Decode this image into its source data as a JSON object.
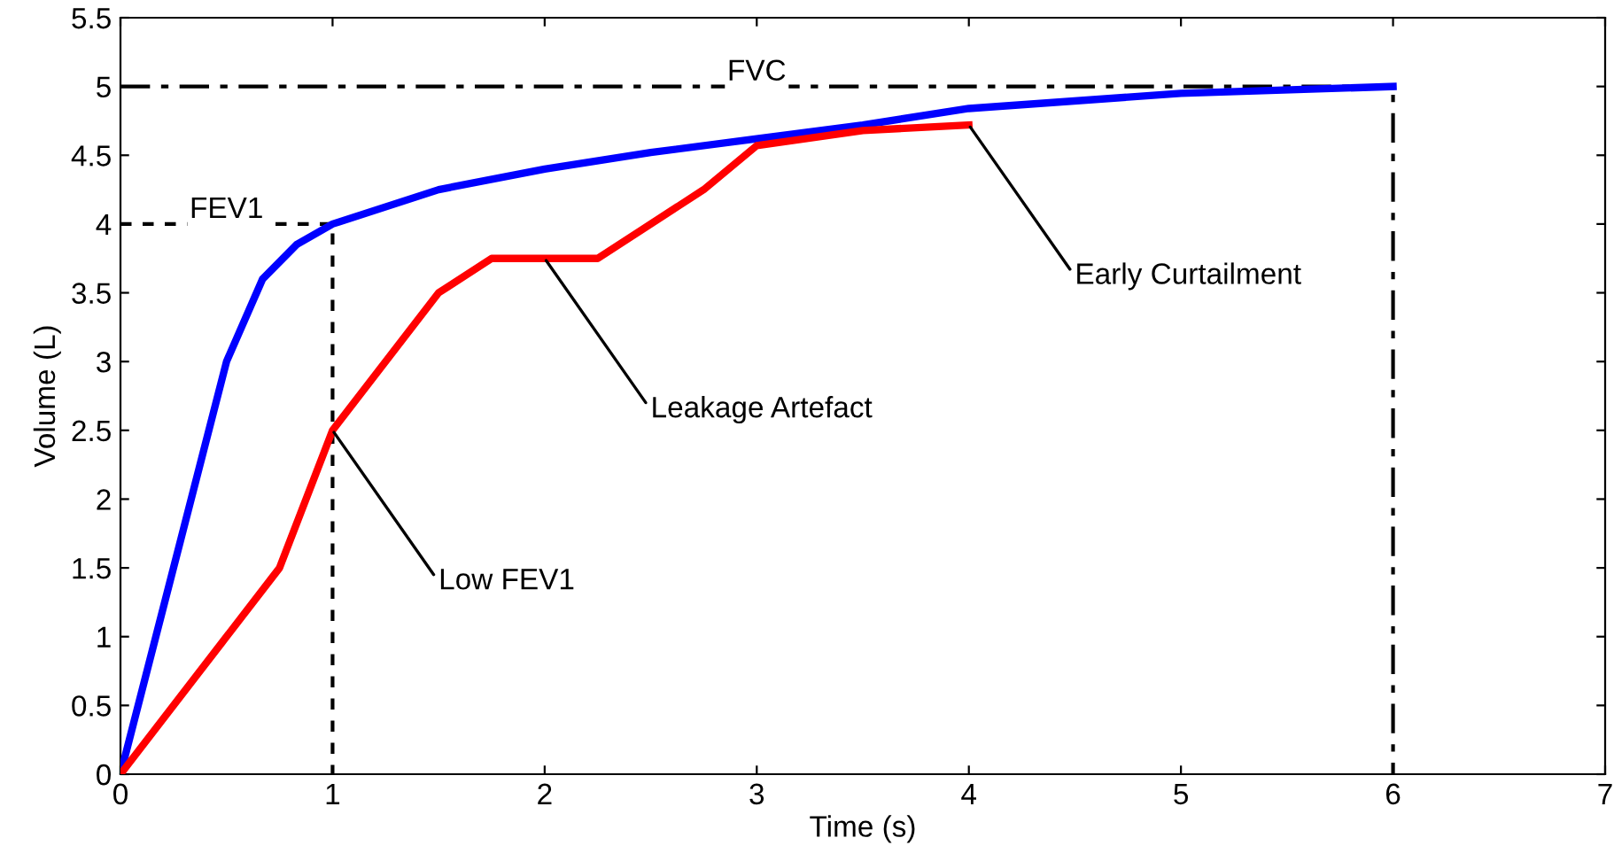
{
  "chart_data": {
    "type": "line",
    "xlabel": "Time (s)",
    "ylabel": "Volume (L)",
    "xlim": [
      0,
      7
    ],
    "ylim": [
      0,
      5.5
    ],
    "xticks": [
      0,
      1,
      2,
      3,
      4,
      5,
      6,
      7
    ],
    "yticks": [
      0,
      0.5,
      1,
      1.5,
      2,
      2.5,
      3,
      3.5,
      4,
      4.5,
      5,
      5.5
    ],
    "grid": false,
    "legend": false,
    "marker": "none",
    "series": [
      {
        "color": "#000000",
        "line_style": "dashed",
        "x": [
          0,
          1,
          1
        ],
        "values": [
          4,
          4,
          0
        ]
      },
      {
        "color": "#000000",
        "line_style": "dashdot",
        "x": [
          0,
          6,
          6
        ],
        "values": [
          5,
          5,
          0
        ]
      },
      {
        "color": "#0000ff",
        "line_style": "solid",
        "x": [
          0,
          0.5,
          0.67,
          0.83,
          1,
          1.5,
          2,
          2.5,
          3,
          3.5,
          4,
          5,
          6
        ],
        "values": [
          0,
          3,
          3.6,
          3.85,
          4,
          4.25,
          4.4,
          4.52,
          4.62,
          4.72,
          4.84,
          4.95,
          5
        ]
      },
      {
        "color": "#ff0000",
        "line_style": "solid",
        "x": [
          0,
          0.75,
          1,
          1.5,
          1.75,
          2.25,
          2.75,
          3,
          3.5,
          4
        ],
        "values": [
          0,
          1.5,
          2.5,
          3.5,
          3.75,
          3.75,
          4.25,
          4.57,
          4.68,
          4.72
        ]
      }
    ],
    "annotations": [
      {
        "text": "FEV1",
        "x": 0.5,
        "y": 4
      },
      {
        "text": "FVC",
        "x": 3,
        "y": 5
      },
      {
        "text": "Low FEV1",
        "x": 1,
        "y": 2.5
      },
      {
        "text": "Leakage Artefact",
        "x": 2,
        "y": 3.75
      },
      {
        "text": "Early Curtailment",
        "x": 4,
        "y": 4.72
      }
    ]
  }
}
